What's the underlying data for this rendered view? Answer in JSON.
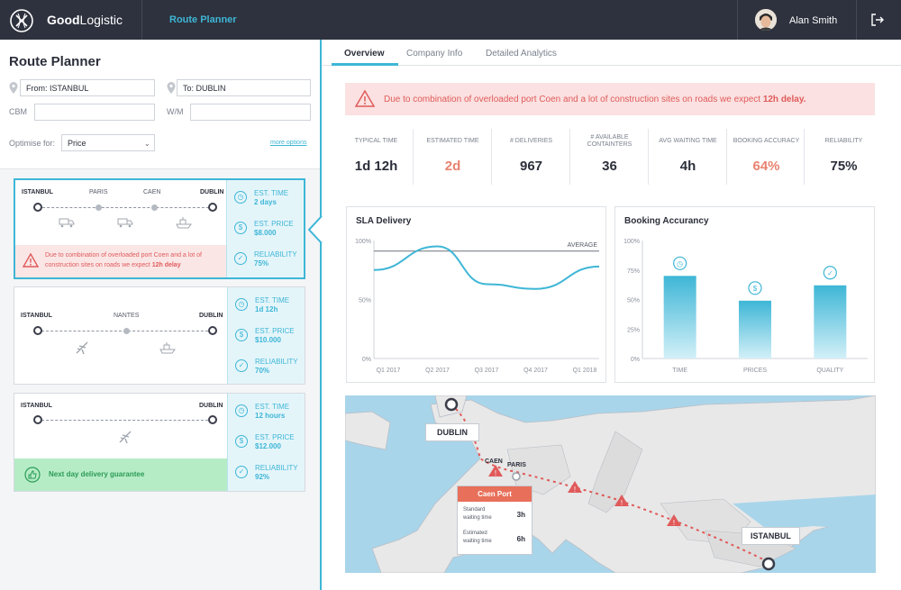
{
  "app": {
    "brand_bold": "Good",
    "brand_rest": "Logistic",
    "nav_link": "Route Planner",
    "user_name": "Alan Smith"
  },
  "planner": {
    "title": "Route Planner",
    "from_value": "From: ISTANBUL",
    "to_value": "To: DUBLIN",
    "cbm_label": "CBM",
    "wm_label": "W/M",
    "optimise_label": "Optimise for:",
    "optimise_value": "Price",
    "more_options": "more options"
  },
  "routes": [
    {
      "start": "ISTANBUL",
      "stops": [
        "PARIS",
        "CAEN"
      ],
      "end": "DUBLIN",
      "time_label": "EST. TIME",
      "time_value": "2 days",
      "price_label": "EST. PRICE",
      "price_value": "$8.000",
      "rel_label": "RELIABILITY",
      "rel_value": "75%",
      "warning_text": "Due to combination of overloaded port Coen and a lot of construction sites on roads we expect",
      "warning_bold": "12h delay"
    },
    {
      "start": "ISTANBUL",
      "stops": [
        "NANTES"
      ],
      "end": "DUBLIN",
      "time_label": "EST. TIME",
      "time_value": "1d 12h",
      "price_label": "EST. PRICE",
      "price_value": "$10.000",
      "rel_label": "RELIABILITY",
      "rel_value": "70%"
    },
    {
      "start": "ISTANBUL",
      "stops": [],
      "end": "DUBLIN",
      "time_label": "EST. TIME",
      "time_value": "12 hours",
      "price_label": "EST. PRICE",
      "price_value": "$12.000",
      "rel_label": "RELIABILITY",
      "rel_value": "92%",
      "guarantee_text": "Next day delivery guarantee"
    }
  ],
  "tabs": [
    "Overview",
    "Company Info",
    "Detailed Analytics"
  ],
  "alert": {
    "text": "Due to combination of overloaded port Coen and a lot of construction sites on roads we expect",
    "bold": "12h delay."
  },
  "kpis": [
    {
      "label": "TYPICAL TIME",
      "value": "1d 12h",
      "highlight": false
    },
    {
      "label": "ESTIMATED TIME",
      "value": "2d",
      "highlight": true
    },
    {
      "label": "# DELIVERIES",
      "value": "967",
      "highlight": false
    },
    {
      "label": "# AVAILABLE CONTAINTERS",
      "value": "36",
      "highlight": false
    },
    {
      "label": "AVG WAITING TIME",
      "value": "4h",
      "highlight": false
    },
    {
      "label": "BOOKING ACCURACY",
      "value": "64%",
      "highlight": true
    },
    {
      "label": "RELIABILITY",
      "value": "75%",
      "highlight": false
    }
  ],
  "chart_data": [
    {
      "type": "line",
      "title": "SLA Delivery",
      "x": [
        "Q1 2017",
        "Q2 2017",
        "Q3 2017",
        "Q4 2017",
        "Q1 2018"
      ],
      "y_ticks": [
        "100%",
        "50%",
        "0%"
      ],
      "ylim": [
        0,
        100
      ],
      "series": [
        {
          "values": [
            75,
            95,
            63,
            59,
            78
          ]
        }
      ],
      "reference_line": {
        "label": "AVERAGE",
        "value": 91
      },
      "color": "#3eb6d6"
    },
    {
      "type": "bar",
      "title": "Booking Accurancy",
      "categories": [
        "TIME",
        "PRICES",
        "QUALITY"
      ],
      "values": [
        70,
        49,
        62
      ],
      "y_ticks": [
        "100%",
        "75%",
        "50%",
        "25%",
        "0%"
      ],
      "ylim": [
        0,
        100
      ],
      "icons": [
        "clock-icon",
        "dollar-icon",
        "check-icon"
      ],
      "color": "#3eb6d6"
    }
  ],
  "map": {
    "labels": {
      "dublin": "DUBLIN",
      "istanbul": "ISTANBUL",
      "caen": "CAEN",
      "paris": "PARIS"
    },
    "popup": {
      "title": "Caen Port",
      "row1_label": "Standard waiting time",
      "row1_value": "3h",
      "row2_label": "Estimated waiting time",
      "row2_value": "6h"
    }
  },
  "colors": {
    "accent": "#3eb6d6",
    "warning": "#e05a5a",
    "topbar": "#2e323e"
  }
}
